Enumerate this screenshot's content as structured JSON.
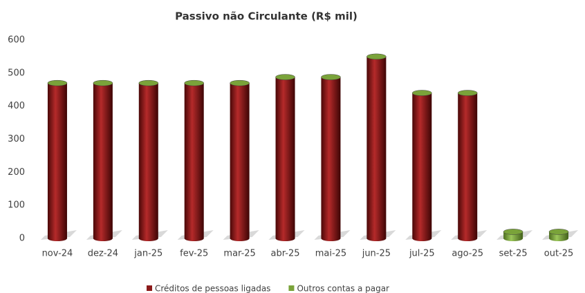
{
  "chart_data": {
    "type": "bar",
    "stacked": true,
    "title": "Passivo  não Circulante (R$ mil)",
    "categories": [
      "nov-24",
      "dez-24",
      "jan-25",
      "fev-25",
      "mar-25",
      "abr-25",
      "mai-25",
      "jun-25",
      "jul-25",
      "ago-25",
      "set-25",
      "out-25"
    ],
    "series": [
      {
        "name": "Créditos de pessoas ligadas",
        "color": "#8b1a1a",
        "values": [
          470,
          470,
          470,
          470,
          470,
          488,
          488,
          550,
          440,
          440,
          0,
          0
        ]
      },
      {
        "name": "Outros contas a pagar",
        "color": "#7aa33a",
        "values": [
          0,
          0,
          0,
          0,
          0,
          0,
          0,
          0,
          0,
          0,
          20,
          20
        ]
      }
    ],
    "ylim": [
      0,
      600
    ],
    "yticks": [
      0,
      100,
      200,
      300,
      400,
      500,
      600
    ],
    "grid": false,
    "legend": "bottom"
  }
}
